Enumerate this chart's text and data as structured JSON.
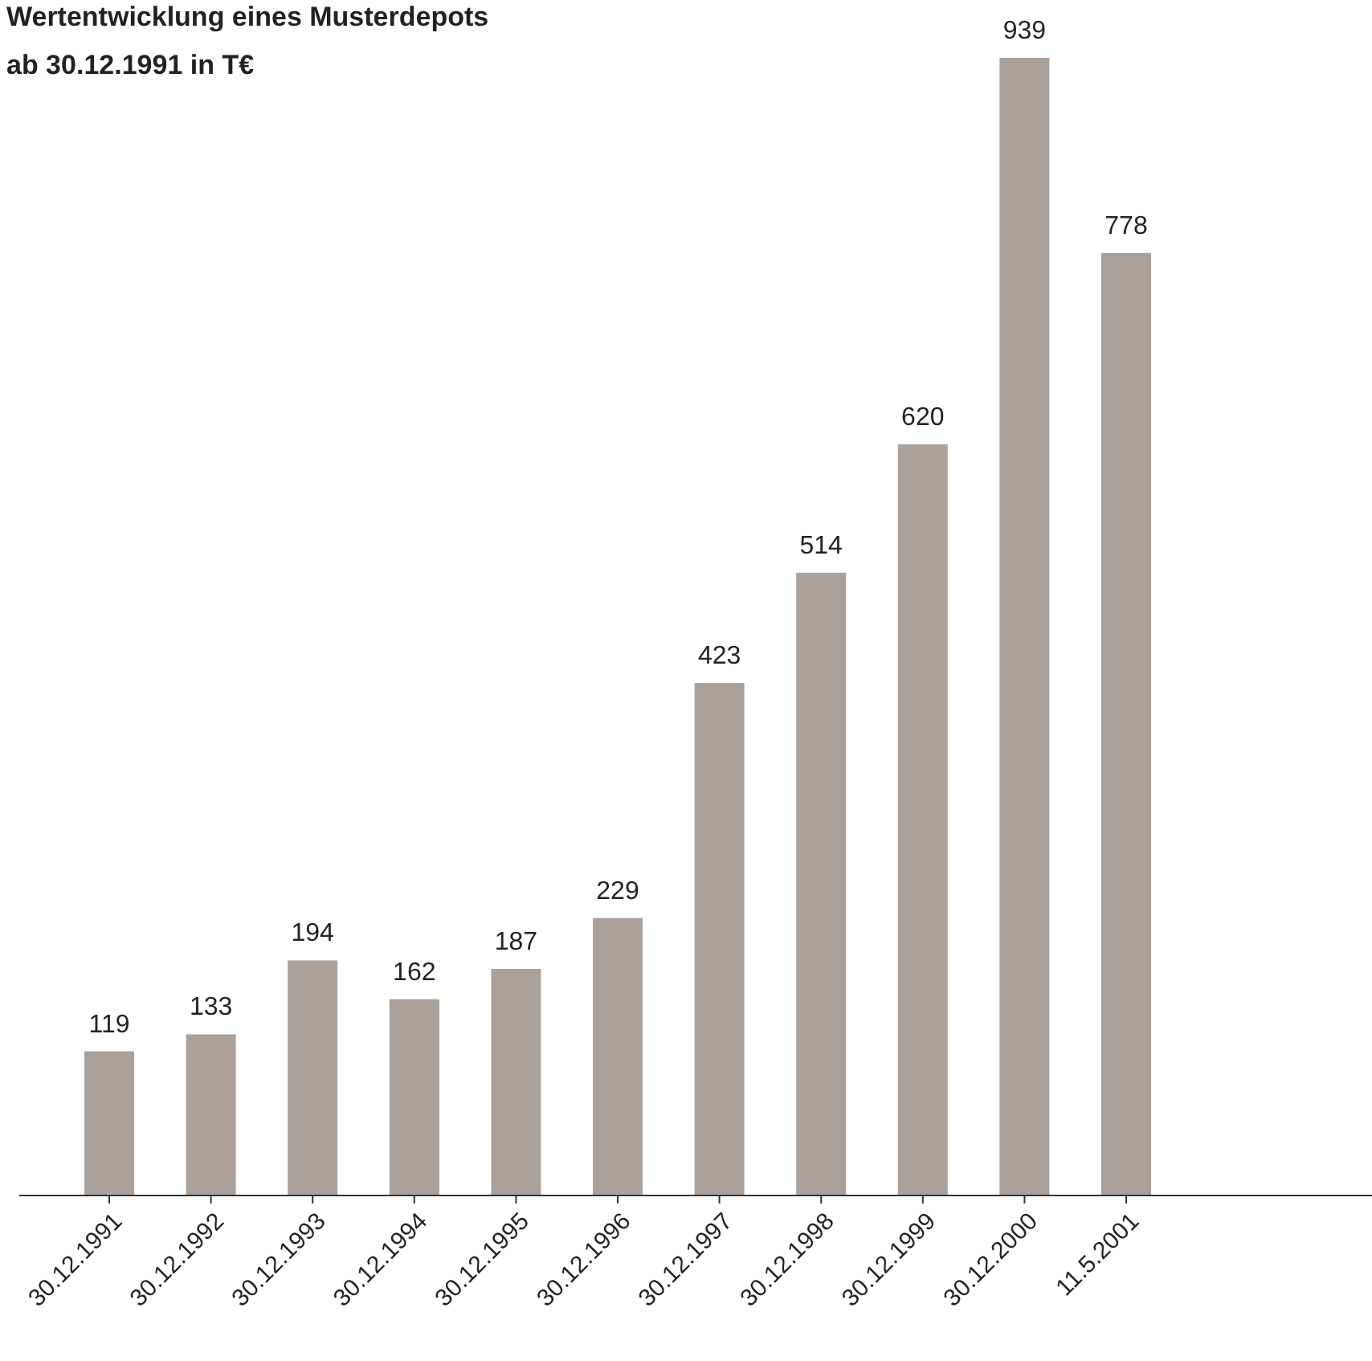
{
  "chart_data": {
    "type": "bar",
    "title": "Wertentwicklung eines Musterdepots\nab 30.12.1991 in T€",
    "categories": [
      "30.12.1991",
      "30.12.1992",
      "30.12.1993",
      "30.12.1994",
      "30.12.1995",
      "30.12.1996",
      "30.12.1997",
      "30.12.1998",
      "30.12.1999",
      "30.12.2000",
      "11.5.2001"
    ],
    "values": [
      119,
      133,
      194,
      162,
      187,
      229,
      423,
      514,
      620,
      939,
      778
    ],
    "color": "#a9a19a",
    "data_labels": true
  }
}
